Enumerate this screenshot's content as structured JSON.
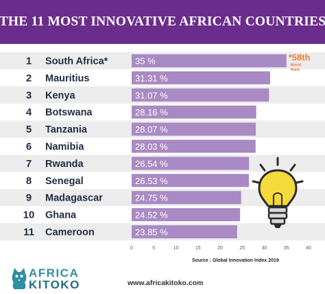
{
  "header": {
    "title": "THE 11 MOST INNOVATIVE AFRICAN COUNTRIES"
  },
  "chart_data": {
    "type": "bar",
    "orientation": "horizontal",
    "title": "THE 11 MOST INNOVATIVE AFRICAN COUNTRIES",
    "ranks": [
      "1",
      "2",
      "3",
      "4",
      "5",
      "6",
      "7",
      "8",
      "9",
      "10",
      "11"
    ],
    "categories": [
      "South Africa*",
      "Mauritius",
      "Kenya",
      "Botswana",
      "Tanzania",
      "Namibia",
      "Rwanda",
      "Senegal",
      "Madagascar",
      "Ghana",
      "Cameroon"
    ],
    "values": [
      35,
      31.31,
      31.07,
      28.16,
      28.07,
      28.03,
      26.54,
      26.53,
      24.75,
      24.52,
      23.85
    ],
    "value_labels": [
      "35 %",
      "31.31 %",
      "31.07 %",
      "28.16 %",
      "28.07 %",
      "28.03 %",
      "26.54 %",
      "26.53 %",
      "24.75 %",
      "24.52 %",
      "23.85 %"
    ],
    "xlim": [
      0,
      40
    ],
    "xticks": [
      "0",
      "5",
      "10",
      "15",
      "20",
      "25",
      "30",
      "35",
      "40"
    ],
    "annotation": {
      "big": "*58th",
      "line1": "World",
      "line2": "Rank"
    },
    "bar_color": "#a98ac4",
    "stripe_color": "#ececec",
    "annotation_color": "#f07a3a",
    "source": "Source : Global Innovation Index 2019"
  },
  "footer": {
    "source": "Source : Global Innovation Index 2019",
    "url": "www.africakitoko.com",
    "logo_line1": "AFRICA",
    "logo_line2": "KITOKO"
  },
  "icons": {
    "decoration": "lightbulb-icon",
    "logo_mascot": "cat-icon"
  }
}
